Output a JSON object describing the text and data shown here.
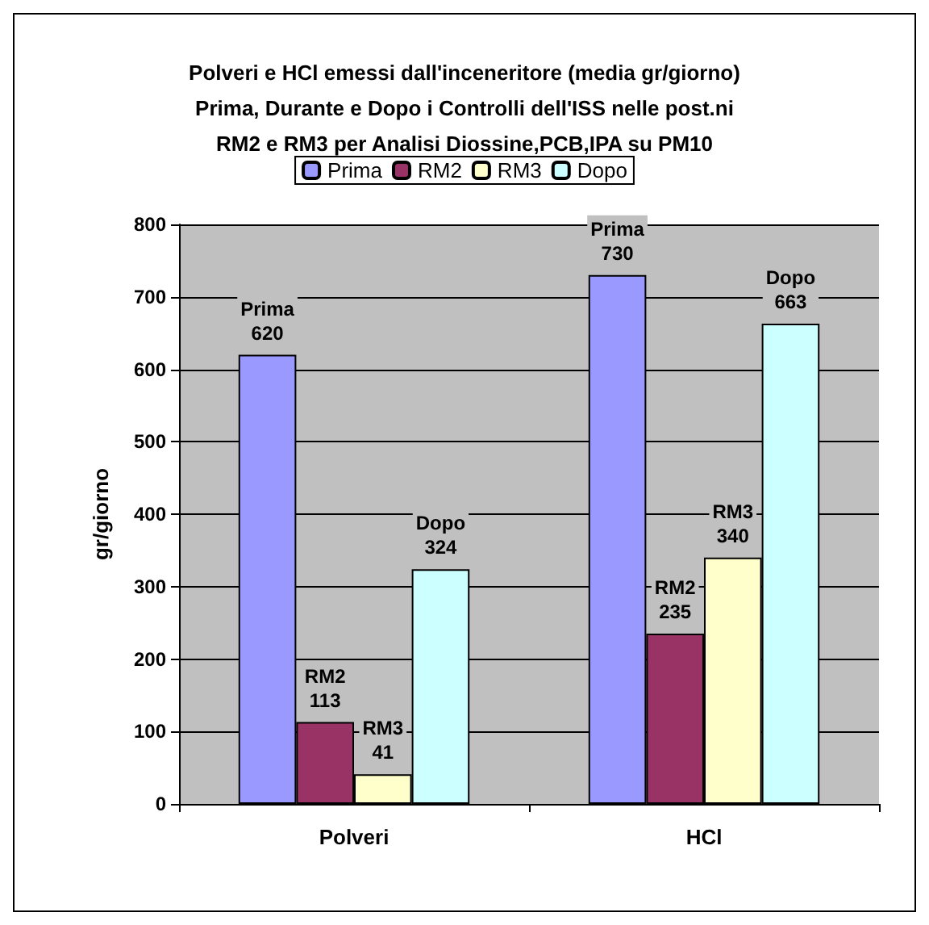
{
  "chart_data": {
    "type": "bar",
    "title": "Polveri e HCl emessi dall'inceneritore (media gr/giorno) Prima, Durante e Dopo i Controlli dell'ISS nelle post.ni RM2 e RM3 per Analisi Diossine,PCB,IPA su PM10",
    "ylabel": "gr/giorno",
    "categories": [
      "Polveri",
      "HCl"
    ],
    "series": [
      {
        "name": "Prima",
        "color": "#9999ff",
        "values": [
          620,
          730
        ]
      },
      {
        "name": "RM2",
        "color": "#993366",
        "values": [
          113,
          235
        ]
      },
      {
        "name": "RM3",
        "color": "#ffffcc",
        "values": [
          41,
          340
        ]
      },
      {
        "name": "Dopo",
        "color": "#ccffff",
        "values": [
          324,
          663
        ]
      }
    ],
    "ylim": [
      0,
      800
    ],
    "yticks": [
      0,
      100,
      200,
      300,
      400,
      500,
      600,
      700,
      800
    ],
    "grid": "y",
    "legend": "top",
    "data_labels": true
  }
}
